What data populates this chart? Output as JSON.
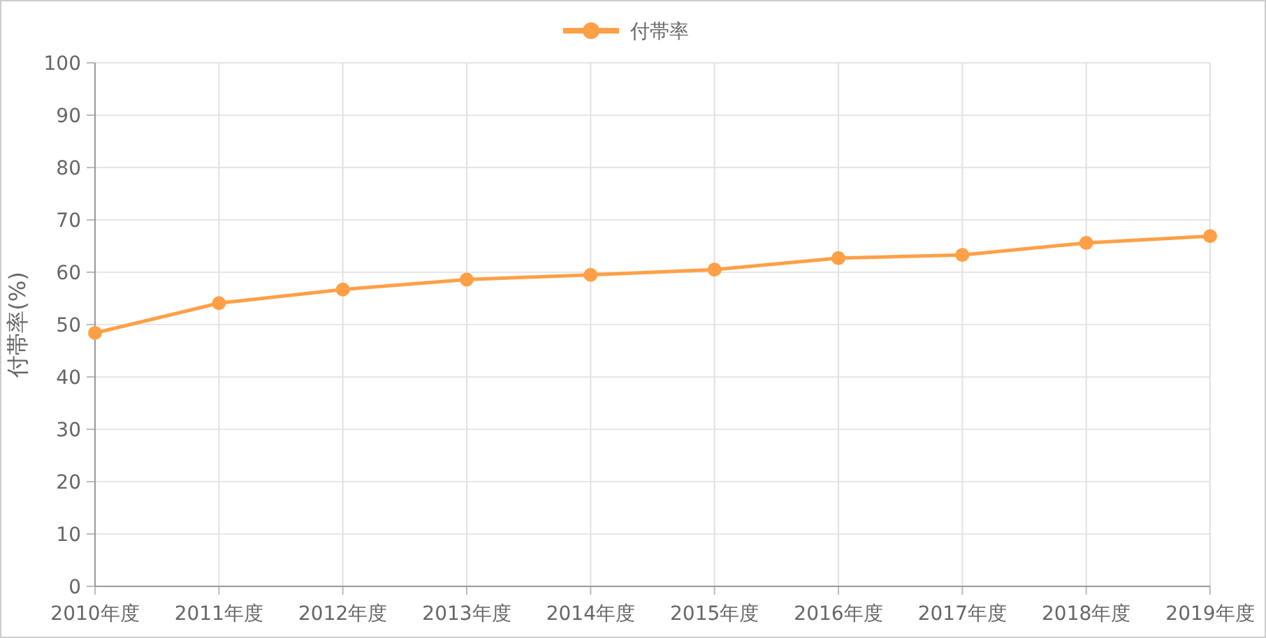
{
  "chart_data": {
    "type": "line",
    "ylabel": "付帯率(%)",
    "categories": [
      "2010年度",
      "2011年度",
      "2012年度",
      "2013年度",
      "2014年度",
      "2015年度",
      "2016年度",
      "2017年度",
      "2018年度",
      "2019年度"
    ],
    "series": [
      {
        "name": "付帯率",
        "color": "#ffa047",
        "values": [
          48.4,
          54.1,
          56.7,
          58.6,
          59.5,
          60.5,
          62.7,
          63.3,
          65.6,
          66.9
        ]
      }
    ],
    "ylim": [
      0,
      100
    ],
    "yticks": [
      0,
      10,
      20,
      30,
      40,
      50,
      60,
      70,
      80,
      90,
      100
    ],
    "grid": true,
    "legend": "top",
    "marker": "circle",
    "line_style": "solid"
  }
}
